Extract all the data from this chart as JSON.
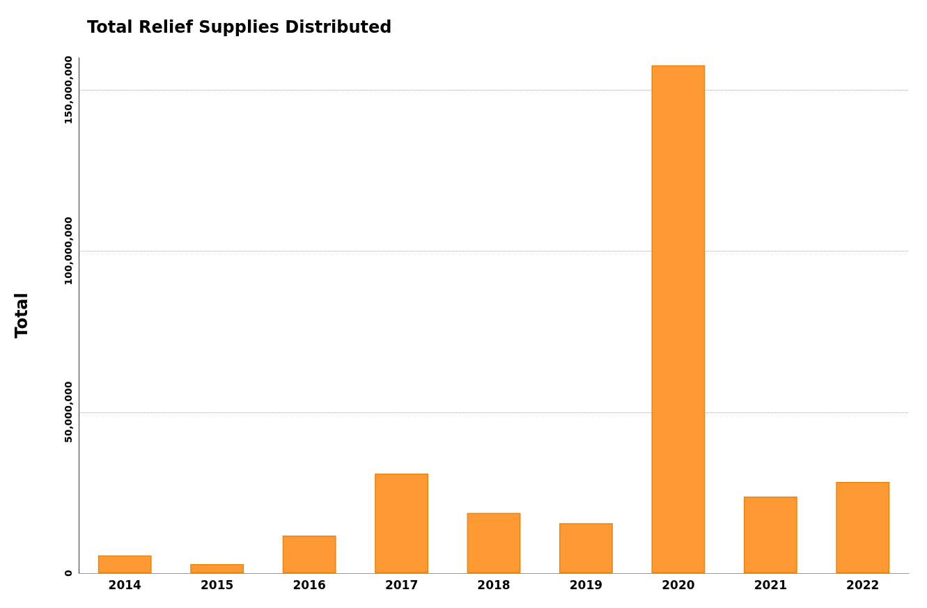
{
  "chart_data": {
    "type": "bar",
    "title": "Total Relief Supplies Distributed",
    "ylabel": "Total",
    "categories": [
      "2014",
      "2015",
      "2016",
      "2017",
      "2018",
      "2019",
      "2020",
      "2021",
      "2022"
    ],
    "values": [
      5500000,
      2800000,
      11700000,
      30900000,
      18700000,
      15500000,
      157700000,
      23800000,
      28300000
    ],
    "color": "#ff9933",
    "ylim": [
      0,
      160000000
    ],
    "yticks": [
      0,
      {
        "value": 50000000,
        "label": "50,000,000"
      },
      {
        "value": 100000000,
        "label": "100,000,000"
      },
      {
        "value": 150000000,
        "label": "150,000,000"
      }
    ],
    "grid": "y"
  }
}
